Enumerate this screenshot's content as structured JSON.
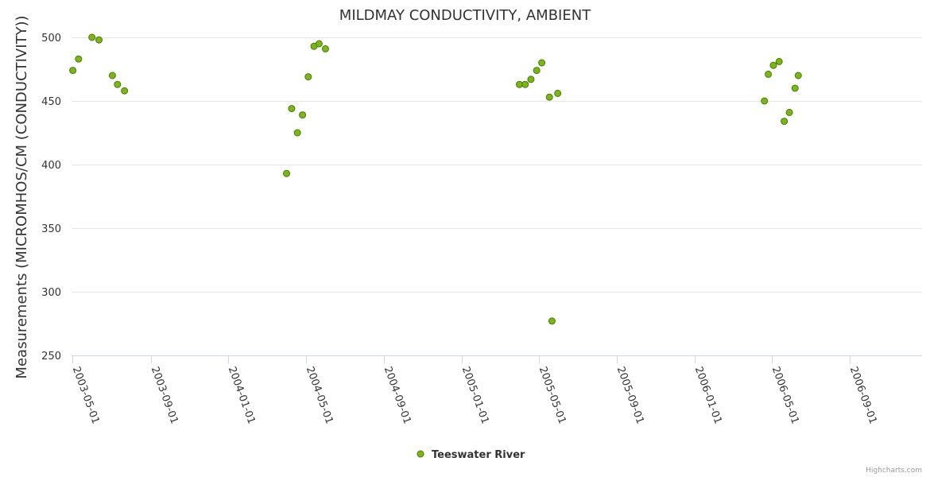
{
  "chart_data": {
    "type": "scatter",
    "title": "MILDMAY CONDUCTIVITY, AMBIENT",
    "xlabel": "",
    "ylabel": "Measurements (MICROMHOS/CM (CONDUCTIVITY))",
    "ylim": [
      250,
      500
    ],
    "yticks": [
      250,
      300,
      350,
      400,
      450,
      500
    ],
    "xlim": [
      "2003-04-30",
      "2006-12-23"
    ],
    "xticks": [
      "2003-05-01",
      "2003-09-01",
      "2004-01-01",
      "2004-05-01",
      "2004-09-01",
      "2005-01-01",
      "2005-05-01",
      "2005-09-01",
      "2006-01-01",
      "2006-05-01",
      "2006-09-01"
    ],
    "grid": true,
    "legend_position": "bottom-center",
    "series": [
      {
        "name": "Teeswater River",
        "color": "#7cb518",
        "points": [
          {
            "x": "2003-05-02",
            "y": 474
          },
          {
            "x": "2003-05-11",
            "y": 483
          },
          {
            "x": "2003-06-01",
            "y": 500
          },
          {
            "x": "2003-06-12",
            "y": 498
          },
          {
            "x": "2003-07-03",
            "y": 470
          },
          {
            "x": "2003-07-11",
            "y": 463
          },
          {
            "x": "2003-07-22",
            "y": 458
          },
          {
            "x": "2004-04-01",
            "y": 393
          },
          {
            "x": "2004-04-09",
            "y": 444
          },
          {
            "x": "2004-04-18",
            "y": 425
          },
          {
            "x": "2004-04-26",
            "y": 439
          },
          {
            "x": "2004-05-05",
            "y": 469
          },
          {
            "x": "2004-05-14",
            "y": 493
          },
          {
            "x": "2004-05-22",
            "y": 495
          },
          {
            "x": "2004-06-01",
            "y": 491
          },
          {
            "x": "2005-04-01",
            "y": 463
          },
          {
            "x": "2005-04-10",
            "y": 463
          },
          {
            "x": "2005-04-19",
            "y": 467
          },
          {
            "x": "2005-04-28",
            "y": 474
          },
          {
            "x": "2005-05-06",
            "y": 480
          },
          {
            "x": "2005-05-18",
            "y": 453
          },
          {
            "x": "2005-05-22",
            "y": 277
          },
          {
            "x": "2005-05-31",
            "y": 456
          },
          {
            "x": "2006-04-20",
            "y": 450
          },
          {
            "x": "2006-04-26",
            "y": 471
          },
          {
            "x": "2006-05-04",
            "y": 478
          },
          {
            "x": "2006-05-13",
            "y": 481
          },
          {
            "x": "2006-05-21",
            "y": 434
          },
          {
            "x": "2006-05-29",
            "y": 441
          },
          {
            "x": "2006-06-07",
            "y": 460
          },
          {
            "x": "2006-06-12",
            "y": 470
          }
        ]
      }
    ]
  },
  "credits": "Highcharts.com"
}
